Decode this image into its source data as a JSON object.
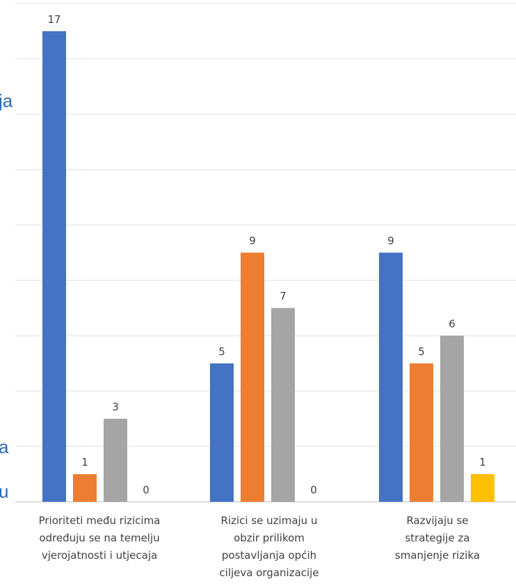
{
  "chart_data": {
    "type": "bar",
    "categories": [
      [
        "Prioriteti među rizicima",
        "određuju se na temelju",
        "vjerojatnosti i utjecaja"
      ],
      [
        "Rizici se uzimaju u",
        "obzir prilikom",
        "postavljanja općih",
        "ciljeva organizacije"
      ],
      [
        "Razvijaju se",
        "strategije za",
        "smanjenje rizika"
      ]
    ],
    "series": [
      {
        "values": [
          17,
          5,
          9
        ],
        "color": "#4472c4"
      },
      {
        "values": [
          1,
          9,
          5
        ],
        "color": "#ed7d31"
      },
      {
        "values": [
          3,
          7,
          6
        ],
        "color": "#a5a5a5"
      },
      {
        "values": [
          0,
          0,
          1
        ],
        "color": "#ffc000"
      }
    ],
    "ylim": [
      0,
      18
    ],
    "gridlines": true,
    "legend": "none"
  },
  "cropped_text": [
    "ja",
    "a",
    "u"
  ]
}
